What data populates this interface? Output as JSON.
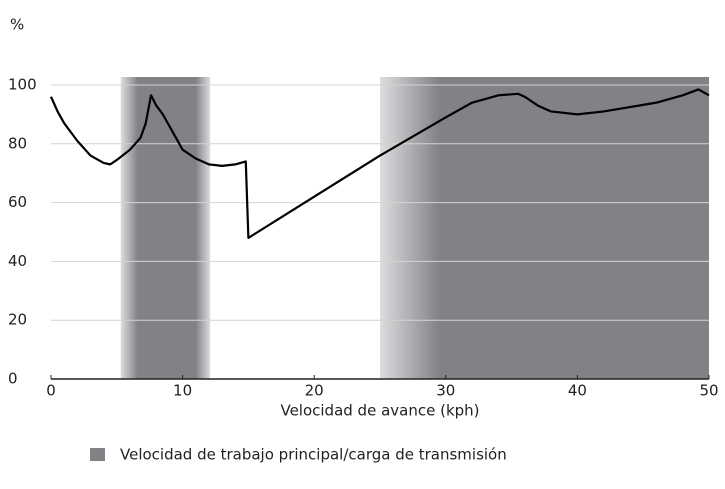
{
  "chart_data": {
    "type": "line",
    "y_label": "%",
    "x_label": "Velocidad de avance (kph)",
    "legend": "Velocidad de trabajo principal/carga de transmisión",
    "band_color": "#808285",
    "band_fade_color": "#dcdddf",
    "bands": [
      {
        "start": 5.3,
        "full_start": 6.6,
        "full_end": 11,
        "end": 12.1
      },
      {
        "start": 25,
        "full_start": 29.5,
        "full_end": 50,
        "end": 50
      }
    ],
    "series": [
      {
        "color": "#000000",
        "x": [
          0,
          0.5,
          1,
          2,
          3,
          4,
          4.5,
          5,
          6,
          6.8,
          7.2,
          7.6,
          8,
          8.5,
          9,
          10,
          11,
          12,
          13,
          14,
          14.8,
          15,
          20,
          25,
          30,
          32,
          34,
          35.5,
          36,
          37,
          38,
          40,
          42,
          44,
          46,
          48,
          49.2,
          50
        ],
        "values": [
          96,
          91,
          87,
          81,
          76,
          73.5,
          73,
          74.5,
          78,
          82,
          87,
          96.5,
          93,
          90,
          86,
          78,
          75,
          73,
          72.5,
          73,
          74,
          48,
          62,
          76,
          89,
          94,
          96.5,
          97,
          96,
          93,
          91,
          90,
          91,
          92.5,
          94,
          96.5,
          98.5,
          96.5
        ]
      }
    ],
    "xlim": [
      0,
      50
    ],
    "xticks": [
      0,
      10,
      20,
      30,
      40,
      50
    ],
    "ylim": [
      0,
      100
    ],
    "yticks": [
      0,
      20,
      40,
      60,
      80,
      100
    ],
    "grid": true
  }
}
